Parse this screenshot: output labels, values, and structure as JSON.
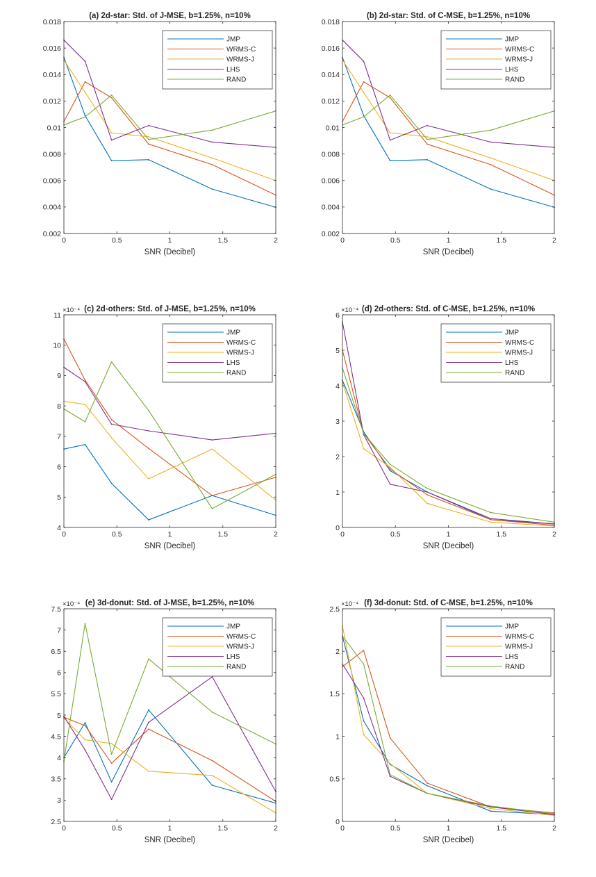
{
  "chart_data": [
    {
      "type": "line",
      "title": "(a) 2d-star: Std. of J-MSE, b=1.25%, n=10%",
      "xlabel": "SNR (Decibel)",
      "ylabel": "",
      "xlim": [
        0,
        2
      ],
      "ylim": [
        0.002,
        0.018
      ],
      "xticks": [
        0,
        0.5,
        1,
        1.5,
        2
      ],
      "xtick_labels": [
        "0",
        "0.5",
        "1",
        "1.5",
        "2"
      ],
      "yticks": [
        0.002,
        0.004,
        0.006,
        0.008,
        0.01,
        0.012,
        0.014,
        0.016,
        0.018
      ],
      "ytick_labels": [
        "0.002",
        "0.004",
        "0.006",
        "0.008",
        "0.01",
        "0.012",
        "0.014",
        "0.016",
        "0.018"
      ],
      "exponent_label": "",
      "legend_position": "top-right",
      "x": [
        0,
        0.2,
        0.45,
        0.8,
        1.4,
        2
      ],
      "series": [
        {
          "name": "JMP",
          "color": "#0072BD",
          "values": [
            0.0153,
            0.0109,
            0.0075,
            0.00757,
            0.00535,
            0.00398
          ]
        },
        {
          "name": "WRMS-C",
          "color": "#D95319",
          "values": [
            0.01045,
            0.01345,
            0.01225,
            0.00875,
            0.0072,
            0.0049
          ]
        },
        {
          "name": "WRMS-J",
          "color": "#EDB120",
          "values": [
            0.0151,
            0.01265,
            0.0096,
            0.0093,
            0.0077,
            0.006
          ]
        },
        {
          "name": "LHS",
          "color": "#7E2F8E",
          "values": [
            0.0166,
            0.015,
            0.00905,
            0.01015,
            0.0089,
            0.0085
          ]
        },
        {
          "name": "RAND",
          "color": "#77AC30",
          "values": [
            0.0102,
            0.0108,
            0.01245,
            0.0091,
            0.0098,
            0.01125
          ]
        }
      ]
    },
    {
      "type": "line",
      "title": "(b) 2d-star: Std. of C-MSE, b=1.25%, n=10%",
      "xlabel": "SNR (Decibel)",
      "ylabel": "",
      "xlim": [
        0,
        2
      ],
      "ylim": [
        0.002,
        0.018
      ],
      "xticks": [
        0,
        0.5,
        1,
        1.5,
        2
      ],
      "xtick_labels": [
        "0",
        "0.5",
        "1",
        "1.5",
        "2"
      ],
      "yticks": [
        0.002,
        0.004,
        0.006,
        0.008,
        0.01,
        0.012,
        0.014,
        0.016,
        0.018
      ],
      "ytick_labels": [
        "0.002",
        "0.004",
        "0.006",
        "0.008",
        "0.01",
        "0.012",
        "0.014",
        "0.016",
        "0.018"
      ],
      "exponent_label": "",
      "legend_position": "top-right",
      "x": [
        0,
        0.2,
        0.45,
        0.8,
        1.4,
        2
      ],
      "series": [
        {
          "name": "JMP",
          "color": "#0072BD",
          "values": [
            0.0153,
            0.0109,
            0.0075,
            0.00757,
            0.00535,
            0.00398
          ]
        },
        {
          "name": "WRMS-C",
          "color": "#D95319",
          "values": [
            0.01045,
            0.01345,
            0.01225,
            0.00875,
            0.0072,
            0.0049
          ]
        },
        {
          "name": "WRMS-J",
          "color": "#EDB120",
          "values": [
            0.0151,
            0.01265,
            0.0096,
            0.0093,
            0.0077,
            0.006
          ]
        },
        {
          "name": "LHS",
          "color": "#7E2F8E",
          "values": [
            0.0166,
            0.015,
            0.00905,
            0.01015,
            0.0089,
            0.0085
          ]
        },
        {
          "name": "RAND",
          "color": "#77AC30",
          "values": [
            0.0102,
            0.0108,
            0.01245,
            0.0091,
            0.0098,
            0.01125
          ]
        }
      ]
    },
    {
      "type": "line",
      "title": "(c) 2d-others: Std. of J-MSE, b=1.25%, n=10%",
      "xlabel": "SNR (Decibel)",
      "ylabel": "",
      "xlim": [
        0,
        2
      ],
      "ylim": [
        4,
        11
      ],
      "xticks": [
        0,
        0.5,
        1,
        1.5,
        2
      ],
      "xtick_labels": [
        "0",
        "0.5",
        "1",
        "1.5",
        "2"
      ],
      "yticks": [
        4,
        5,
        6,
        7,
        8,
        9,
        10,
        11
      ],
      "ytick_labels": [
        "4",
        "5",
        "6",
        "7",
        "8",
        "9",
        "10",
        "11"
      ],
      "exponent_label": "×10⁻⁴",
      "legend_position": "top-right",
      "x": [
        0,
        0.2,
        0.45,
        0.8,
        1.4,
        2
      ],
      "series": [
        {
          "name": "JMP",
          "color": "#0072BD",
          "values": [
            6.58,
            6.73,
            5.45,
            4.25,
            5.05,
            4.4
          ]
        },
        {
          "name": "WRMS-C",
          "color": "#D95319",
          "values": [
            10.2,
            8.85,
            7.55,
            6.6,
            5.05,
            5.65
          ]
        },
        {
          "name": "WRMS-J",
          "color": "#EDB120",
          "values": [
            8.15,
            8.05,
            6.95,
            5.6,
            6.58,
            4.9
          ]
        },
        {
          "name": "LHS",
          "color": "#7E2F8E",
          "values": [
            9.27,
            8.8,
            7.4,
            7.18,
            6.88,
            7.1
          ]
        },
        {
          "name": "RAND",
          "color": "#77AC30",
          "values": [
            7.9,
            7.48,
            9.45,
            7.85,
            4.62,
            5.75
          ]
        }
      ]
    },
    {
      "type": "line",
      "title": "(d) 2d-others: Std. of C-MSE, b=1.25%, n=10%",
      "xlabel": "SNR (Decibel)",
      "ylabel": "",
      "xlim": [
        0,
        2
      ],
      "ylim": [
        0,
        6
      ],
      "xticks": [
        0,
        0.5,
        1,
        1.5,
        2
      ],
      "xtick_labels": [
        "0",
        "0.5",
        "1",
        "1.5",
        "2"
      ],
      "yticks": [
        0,
        1,
        2,
        3,
        4,
        5,
        6
      ],
      "ytick_labels": [
        "0",
        "1",
        "2",
        "3",
        "4",
        "5",
        "6"
      ],
      "exponent_label": "×10⁻⁴",
      "legend_position": "top-right",
      "x": [
        0,
        0.2,
        0.45,
        0.8,
        1.4,
        2
      ],
      "series": [
        {
          "name": "JMP",
          "color": "#0072BD",
          "values": [
            4.15,
            2.7,
            1.6,
            1.0,
            0.22,
            0.1
          ]
        },
        {
          "name": "WRMS-C",
          "color": "#D95319",
          "values": [
            5.0,
            2.65,
            1.65,
            0.92,
            0.22,
            0.06
          ]
        },
        {
          "name": "WRMS-J",
          "color": "#EDB120",
          "values": [
            4.1,
            2.22,
            1.7,
            0.68,
            0.15,
            0.04
          ]
        },
        {
          "name": "LHS",
          "color": "#7E2F8E",
          "values": [
            5.8,
            2.62,
            1.22,
            1.0,
            0.25,
            0.1
          ]
        },
        {
          "name": "RAND",
          "color": "#77AC30",
          "values": [
            4.5,
            2.65,
            1.78,
            1.1,
            0.42,
            0.15
          ]
        }
      ]
    },
    {
      "type": "line",
      "title": "(e) 3d-donut: Std. of J-MSE, b=1.25%, n=10%",
      "xlabel": "SNR (Decibel)",
      "ylabel": "",
      "xlim": [
        0,
        2
      ],
      "ylim": [
        2.5,
        7.5
      ],
      "xticks": [
        0,
        0.5,
        1,
        1.5,
        2
      ],
      "xtick_labels": [
        "0",
        "0.5",
        "1",
        "1.5",
        "2"
      ],
      "yticks": [
        2.5,
        3,
        3.5,
        4,
        4.5,
        5,
        5.5,
        6,
        6.5,
        7,
        7.5
      ],
      "ytick_labels": [
        "2.5",
        "3",
        "3.5",
        "4",
        "4.5",
        "5",
        "5.5",
        "6",
        "6.5",
        "7",
        "7.5"
      ],
      "exponent_label": "×10⁻⁴",
      "legend_position": "top-right",
      "x": [
        0,
        0.2,
        0.45,
        0.8,
        1.4,
        2
      ],
      "series": [
        {
          "name": "JMP",
          "color": "#0072BD",
          "values": [
            4.0,
            4.82,
            3.43,
            5.12,
            3.35,
            2.93
          ]
        },
        {
          "name": "WRMS-C",
          "color": "#D95319",
          "values": [
            4.95,
            4.75,
            3.87,
            4.67,
            3.93,
            2.97
          ]
        },
        {
          "name": "WRMS-J",
          "color": "#EDB120",
          "values": [
            4.93,
            4.42,
            4.33,
            3.68,
            3.58,
            2.7
          ]
        },
        {
          "name": "LHS",
          "color": "#7E2F8E",
          "values": [
            4.97,
            4.18,
            3.02,
            4.83,
            5.9,
            3.2
          ]
        },
        {
          "name": "RAND",
          "color": "#77AC30",
          "values": [
            3.92,
            7.15,
            4.08,
            6.32,
            5.07,
            4.32
          ]
        }
      ]
    },
    {
      "type": "line",
      "title": "(f) 3d-donut: Std. of C-MSE, b=1.25%, n=10%",
      "xlabel": "SNR (Decibel)",
      "ylabel": "",
      "xlim": [
        0,
        2
      ],
      "ylim": [
        0,
        2.5
      ],
      "xticks": [
        0,
        0.5,
        1,
        1.5,
        2
      ],
      "xtick_labels": [
        "0",
        "0.5",
        "1",
        "1.5",
        "2"
      ],
      "yticks": [
        0,
        0.5,
        1,
        1.5,
        2,
        2.5
      ],
      "ytick_labels": [
        "0",
        "0.5",
        "1",
        "1.5",
        "2",
        "2.5"
      ],
      "exponent_label": "×10⁻⁴",
      "legend_position": "top-right",
      "x": [
        0,
        0.2,
        0.45,
        0.8,
        1.4,
        2
      ],
      "series": [
        {
          "name": "JMP",
          "color": "#0072BD",
          "values": [
            2.18,
            1.18,
            0.67,
            0.42,
            0.12,
            0.08
          ]
        },
        {
          "name": "WRMS-C",
          "color": "#D95319",
          "values": [
            1.82,
            2.01,
            0.98,
            0.45,
            0.17,
            0.1
          ]
        },
        {
          "name": "WRMS-J",
          "color": "#EDB120",
          "values": [
            2.3,
            1.02,
            0.68,
            0.33,
            0.15,
            0.07
          ]
        },
        {
          "name": "LHS",
          "color": "#7E2F8E",
          "values": [
            1.85,
            1.45,
            0.53,
            0.33,
            0.17,
            0.08
          ]
        },
        {
          "name": "RAND",
          "color": "#77AC30",
          "values": [
            2.18,
            1.85,
            0.55,
            0.33,
            0.18,
            0.09
          ]
        }
      ]
    }
  ]
}
